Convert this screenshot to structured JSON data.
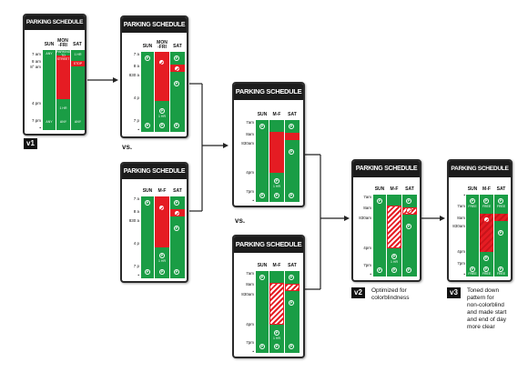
{
  "sign_title": "PARKING SCHEDULE",
  "v1": {
    "version_label": "v1",
    "cols": [
      "SUN",
      "MON\n-FRI",
      "SAT"
    ],
    "times": [
      "7 am",
      "8 am",
      "8° am",
      "4 pm",
      "7 pm",
      "•"
    ],
    "texts": [
      "ANY",
      "PARKING\nTO\nSTREET",
      "1 HR",
      "STOP",
      "1 HR",
      "ANY",
      "ANY",
      "ANY"
    ]
  },
  "v1b": {
    "cols": [
      "SUN",
      "MON\n-FRI",
      "SAT"
    ],
    "times": [
      "7 a",
      "8 a",
      "830 a",
      "4 p",
      "7 p",
      "•"
    ],
    "pin_label": "1 HR"
  },
  "v1c": {
    "cols": [
      "SUN",
      "M-F",
      "SAT"
    ],
    "times": [
      "7 a",
      "8 a",
      "830 a",
      "4 p",
      "7 p",
      "•"
    ],
    "pin_label": "1 HR"
  },
  "v2a": {
    "cols": [
      "SUN",
      "M-F",
      "SAT"
    ],
    "times": [
      "7am",
      "8am",
      "830am",
      "4pm",
      "7pm",
      "•"
    ],
    "pin_label": "1 HR"
  },
  "v2b": {
    "cols": [
      "SUN",
      "M-F",
      "SAT"
    ],
    "times": [
      "7am",
      "8am",
      "830am",
      "4pm",
      "7pm",
      "•"
    ],
    "pin_label": "1 HR"
  },
  "v2": {
    "cols": [
      "SUN",
      "M-F",
      "SAT"
    ],
    "times": [
      "7am",
      "8am",
      "830am",
      "4pm",
      "7pm",
      "•"
    ],
    "pin_label": "1 HR",
    "version_label": "v2",
    "caption": "Optimized for\ncolorblindness"
  },
  "v3": {
    "cols": [
      "SUN",
      "M-F",
      "SAT"
    ],
    "times": [
      "•",
      "7am",
      "8am",
      "830am",
      "4pm",
      "7pm",
      "•"
    ],
    "pin_label": "FREE",
    "version_label": "v3",
    "caption": "Toned down\npattern for\nnon-colorblind\nand made start\nand end of day\nmore clear"
  },
  "vs_label": "vs.",
  "colors": {
    "green": "#1a9d45",
    "red": "#e51c23",
    "dark": "#1c1c1c"
  },
  "icons": [
    "parking-pin-icon",
    "no-parking-icon",
    "arrow-icon"
  ]
}
